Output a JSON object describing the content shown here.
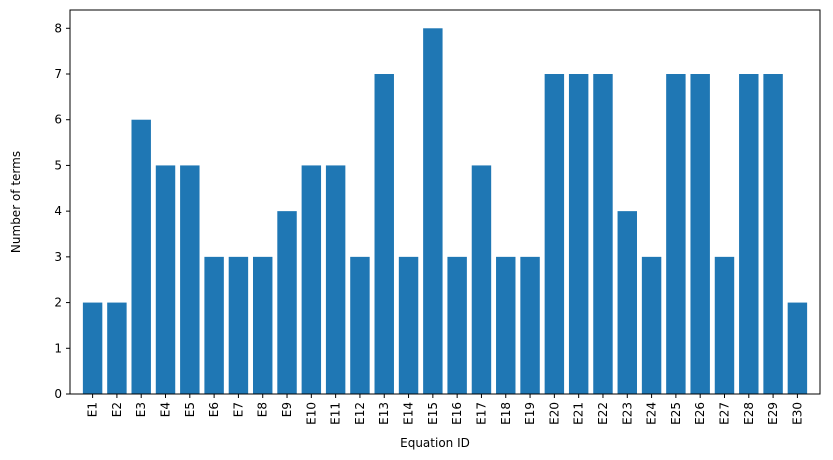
{
  "chart_data": {
    "type": "bar",
    "x_label": "Equation ID",
    "y_label": "Number of terms",
    "categories": [
      "E1",
      "E2",
      "E3",
      "E4",
      "E5",
      "E6",
      "E7",
      "E8",
      "E9",
      "E10",
      "E11",
      "E12",
      "E13",
      "E14",
      "E15",
      "E16",
      "E17",
      "E18",
      "E19",
      "E20",
      "E21",
      "E22",
      "E23",
      "E24",
      "E25",
      "E26",
      "E27",
      "E28",
      "E29",
      "E30"
    ],
    "values": [
      2,
      2,
      6,
      5,
      5,
      3,
      3,
      3,
      4,
      5,
      5,
      3,
      7,
      3,
      8,
      3,
      5,
      3,
      3,
      7,
      7,
      7,
      4,
      3,
      7,
      7,
      3,
      7,
      7,
      2
    ],
    "color": "#1f77b4",
    "ylim": [
      0,
      8.4
    ],
    "yticks": [
      0,
      1,
      2,
      3,
      4,
      5,
      6,
      7,
      8
    ],
    "grid": false
  }
}
